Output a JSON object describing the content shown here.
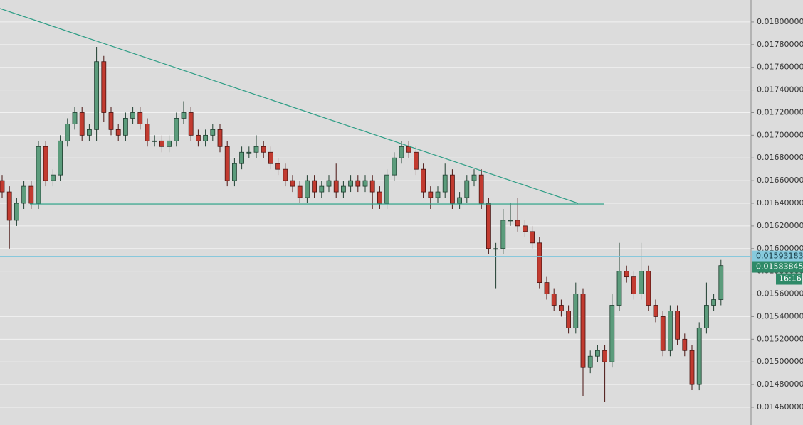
{
  "chart_data": {
    "type": "candlestick",
    "up_color": "#5c9c7c",
    "down_color": "#c23b30",
    "grid": true,
    "ylim": [
      0.014443,
      0.018194
    ],
    "yticks": [
      {
        "value": 0.0146,
        "label": "0.01460000"
      },
      {
        "value": 0.0148,
        "label": "0.01480000"
      },
      {
        "value": 0.015,
        "label": "0.01500000"
      },
      {
        "value": 0.0152,
        "label": "0.01520000"
      },
      {
        "value": 0.0154,
        "label": "0.01540000"
      },
      {
        "value": 0.0156,
        "label": "0.01560000"
      },
      {
        "value": 0.0158,
        "label": "0.01580000"
      },
      {
        "value": 0.016,
        "label": "0.01600000"
      },
      {
        "value": 0.0162,
        "label": "0.01620000"
      },
      {
        "value": 0.0164,
        "label": "0.01640000"
      },
      {
        "value": 0.0166,
        "label": "0.01660000"
      },
      {
        "value": 0.0168,
        "label": "0.01680000"
      },
      {
        "value": 0.017,
        "label": "0.01700000"
      },
      {
        "value": 0.0172,
        "label": "0.01720000"
      },
      {
        "value": 0.0174,
        "label": "0.01740000"
      },
      {
        "value": 0.0176,
        "label": "0.01760000"
      },
      {
        "value": 0.0178,
        "label": "0.01780000"
      },
      {
        "value": 0.018,
        "label": "0.01800000"
      }
    ],
    "open": [
      0.0166,
      0.0165,
      0.01625,
      0.0164,
      0.01655,
      0.0164,
      0.0169,
      0.0166,
      0.01665,
      0.01695,
      0.0171,
      0.0172,
      0.017,
      0.01705,
      0.01765,
      0.0172,
      0.01705,
      0.017,
      0.01715,
      0.0172,
      0.0171,
      0.01695,
      0.01695,
      0.0169,
      0.01695,
      0.01715,
      0.0172,
      0.017,
      0.01695,
      0.017,
      0.01705,
      0.0169,
      0.0166,
      0.01675,
      0.01685,
      0.01685,
      0.0169,
      0.01685,
      0.01675,
      0.0167,
      0.0166,
      0.01655,
      0.01645,
      0.0166,
      0.0165,
      0.01655,
      0.0166,
      0.0165,
      0.01655,
      0.0166,
      0.01655,
      0.0166,
      0.0165,
      0.0164,
      0.01665,
      0.0168,
      0.0169,
      0.01685,
      0.0167,
      0.0165,
      0.01645,
      0.0165,
      0.01665,
      0.0164,
      0.01645,
      0.0166,
      0.01665,
      0.0164,
      0.016,
      0.016,
      0.01625,
      0.01625,
      0.0162,
      0.01615,
      0.01605,
      0.0157,
      0.0156,
      0.0155,
      0.01545,
      0.0153,
      0.0156,
      0.01495,
      0.01505,
      0.0151,
      0.015,
      0.0155,
      0.0158,
      0.01575,
      0.0156,
      0.0158,
      0.0155,
      0.0154,
      0.0151,
      0.01545,
      0.0152,
      0.0151,
      0.0148,
      0.0153,
      0.0155,
      0.01555
    ],
    "high": [
      0.01665,
      0.01655,
      0.01645,
      0.0166,
      0.0166,
      0.01695,
      0.01695,
      0.0167,
      0.017,
      0.01715,
      0.01725,
      0.01725,
      0.0171,
      0.01778,
      0.0177,
      0.01725,
      0.0171,
      0.0172,
      0.01725,
      0.01725,
      0.01715,
      0.017,
      0.017,
      0.017,
      0.0172,
      0.0173,
      0.01725,
      0.01705,
      0.01705,
      0.0171,
      0.0171,
      0.01695,
      0.0168,
      0.0169,
      0.0169,
      0.017,
      0.01695,
      0.0169,
      0.0168,
      0.01675,
      0.01665,
      0.0166,
      0.01665,
      0.01665,
      0.0166,
      0.01665,
      0.01675,
      0.0166,
      0.01665,
      0.01665,
      0.01665,
      0.01665,
      0.01655,
      0.0167,
      0.01685,
      0.01695,
      0.01695,
      0.0169,
      0.01675,
      0.01655,
      0.01655,
      0.01675,
      0.0167,
      0.0165,
      0.01665,
      0.0167,
      0.0167,
      0.01645,
      0.01605,
      0.01635,
      0.0164,
      0.01645,
      0.01625,
      0.0162,
      0.0161,
      0.01575,
      0.01565,
      0.01555,
      0.0155,
      0.0157,
      0.01565,
      0.0151,
      0.01515,
      0.01515,
      0.0156,
      0.01605,
      0.01585,
      0.0158,
      0.01605,
      0.01585,
      0.01555,
      0.01545,
      0.0155,
      0.0155,
      0.01525,
      0.01515,
      0.01535,
      0.0157,
      0.0156,
      0.0159
    ],
    "low": [
      0.01645,
      0.016,
      0.0162,
      0.01635,
      0.01635,
      0.01635,
      0.01655,
      0.01655,
      0.0166,
      0.0169,
      0.01705,
      0.01695,
      0.01695,
      0.01695,
      0.01712,
      0.017,
      0.01695,
      0.01695,
      0.0171,
      0.01705,
      0.0169,
      0.0169,
      0.01685,
      0.01685,
      0.0169,
      0.0171,
      0.01695,
      0.0169,
      0.0169,
      0.01695,
      0.01685,
      0.01655,
      0.01655,
      0.0167,
      0.0168,
      0.0168,
      0.0168,
      0.0167,
      0.01665,
      0.01655,
      0.0165,
      0.0164,
      0.0164,
      0.01645,
      0.01645,
      0.0165,
      0.01645,
      0.01645,
      0.0165,
      0.0165,
      0.0165,
      0.01635,
      0.01635,
      0.01635,
      0.0166,
      0.01675,
      0.0168,
      0.01665,
      0.01645,
      0.01635,
      0.0164,
      0.01645,
      0.01635,
      0.01635,
      0.0164,
      0.01655,
      0.01635,
      0.01595,
      0.01565,
      0.01595,
      0.0162,
      0.01615,
      0.0161,
      0.016,
      0.01565,
      0.01555,
      0.01545,
      0.0154,
      0.01525,
      0.01525,
      0.0147,
      0.0149,
      0.015,
      0.01465,
      0.01495,
      0.01545,
      0.0157,
      0.01555,
      0.01555,
      0.01545,
      0.01535,
      0.01505,
      0.01505,
      0.01515,
      0.01505,
      0.01475,
      0.01475,
      0.01525,
      0.01545,
      0.0155
    ],
    "close": [
      0.0165,
      0.01625,
      0.0164,
      0.01655,
      0.0164,
      0.0169,
      0.0166,
      0.01665,
      0.01695,
      0.0171,
      0.0172,
      0.017,
      0.01705,
      0.01765,
      0.0172,
      0.01705,
      0.017,
      0.01715,
      0.0172,
      0.0171,
      0.01695,
      0.01695,
      0.0169,
      0.01695,
      0.01715,
      0.0172,
      0.017,
      0.01695,
      0.017,
      0.01705,
      0.0169,
      0.0166,
      0.01675,
      0.01685,
      0.01685,
      0.0169,
      0.01685,
      0.01675,
      0.0167,
      0.0166,
      0.01655,
      0.01645,
      0.0166,
      0.0165,
      0.01655,
      0.0166,
      0.0165,
      0.01655,
      0.0166,
      0.01655,
      0.0166,
      0.0165,
      0.0164,
      0.01665,
      0.0168,
      0.0169,
      0.01685,
      0.0167,
      0.0165,
      0.01645,
      0.0165,
      0.01665,
      0.0164,
      0.01645,
      0.0166,
      0.01665,
      0.0164,
      0.016,
      0.016,
      0.01625,
      0.01625,
      0.0162,
      0.01615,
      0.01605,
      0.0157,
      0.0156,
      0.0155,
      0.01545,
      0.0153,
      0.0156,
      0.01495,
      0.01505,
      0.0151,
      0.015,
      0.0155,
      0.0158,
      0.01575,
      0.0156,
      0.0158,
      0.0155,
      0.0154,
      0.0151,
      0.01545,
      0.0152,
      0.0151,
      0.0148,
      0.0153,
      0.0155,
      0.01555,
      0.01585
    ],
    "bid_line": 0.01593183,
    "last_price": 0.01583845,
    "countdown": "16:16"
  }
}
